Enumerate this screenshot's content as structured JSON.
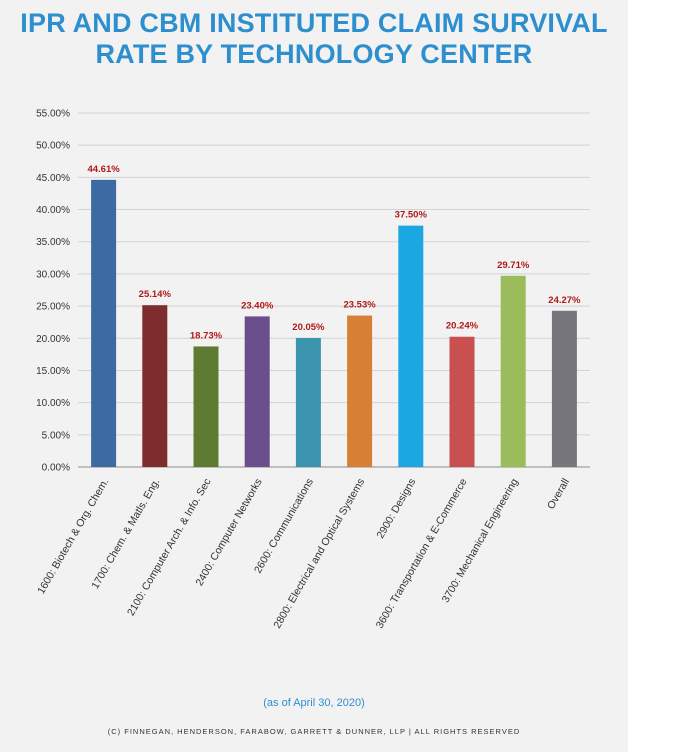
{
  "header": {
    "title_line1": "IPR AND CBM INSTITUTED CLAIM SURVIVAL",
    "title_line2": "RATE BY TECHNOLOGY CENTER"
  },
  "footer": {
    "as_of": "(as of April 30, 2020)",
    "copyright": "(C) FINNEGAN, HENDERSON, FARABOW, GARRETT & DUNNER, LLP | ALL RIGHTS RESERVED"
  },
  "chart_data": {
    "type": "bar",
    "title": "IPR AND CBM INSTITUTED CLAIM SURVIVAL RATE BY TECHNOLOGY CENTER",
    "xlabel": "",
    "ylabel": "",
    "ylim": [
      0,
      55
    ],
    "grid": true,
    "yticks": [
      "0.00%",
      "5.00%",
      "10.00%",
      "15.00%",
      "20.00%",
      "25.00%",
      "30.00%",
      "35.00%",
      "40.00%",
      "45.00%",
      "50.00%",
      "55.00%"
    ],
    "categories": [
      "1600: Biotech & Org. Chem.",
      "1700: Chem. & Matls. Eng.",
      "2100: Computer Arch. & Info. Sec",
      "2400: Computer Networks",
      "2600: Communications",
      "2800: Electrical and Optical Systems",
      "2900: Designs",
      "3600: Transportation & E-Commerce",
      "3700: Mechanical Engineering",
      "Overall"
    ],
    "values": [
      44.61,
      25.14,
      18.73,
      23.4,
      20.05,
      23.53,
      37.5,
      20.24,
      29.71,
      24.27
    ],
    "labels": [
      "44.61%",
      "25.14%",
      "18.73%",
      "23.40%",
      "20.05%",
      "23.53%",
      "37.50%",
      "20.24%",
      "29.71%",
      "24.27%"
    ],
    "colors": [
      "#3d6aa3",
      "#7d2d2d",
      "#5f7a33",
      "#6b4e8c",
      "#3b95ae",
      "#d67f35",
      "#1ba8e2",
      "#c95050",
      "#9cbc5b",
      "#76767c"
    ]
  }
}
